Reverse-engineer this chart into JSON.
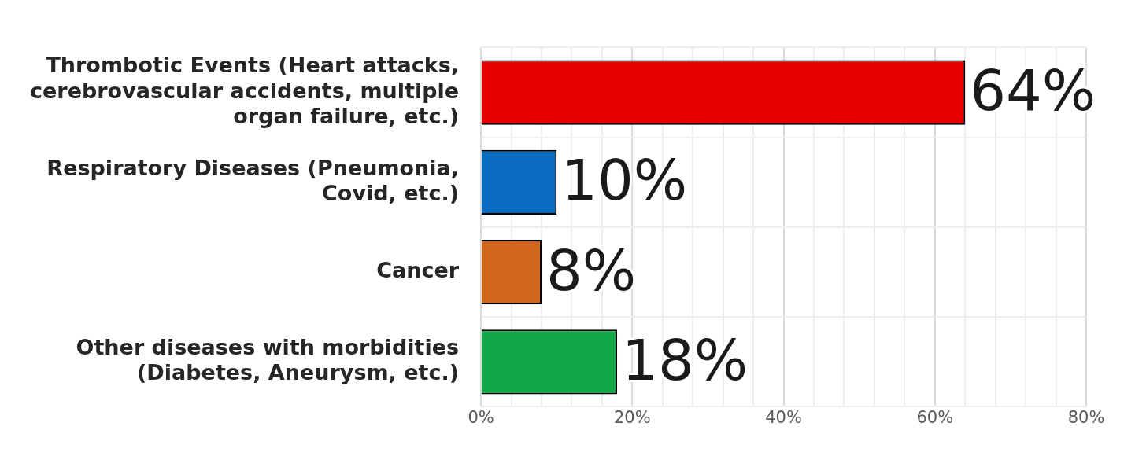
{
  "chart_data": {
    "type": "bar",
    "orientation": "horizontal",
    "categories": [
      "Thrombotic Events (Heart attacks, cerebrovascular accidents, multiple organ failure, etc.)",
      "Respiratory Diseases (Pneumonia, Covid, etc.)",
      "Cancer",
      "Other diseases with morbidities (Diabetes, Aneurysm, etc.)"
    ],
    "values": [
      64,
      10,
      8,
      18
    ],
    "colors": [
      "#e80000",
      "#0a6cc0",
      "#d0661a",
      "#12a848"
    ],
    "value_labels": [
      "64%",
      "10%",
      "8%",
      "18%"
    ],
    "xlim": [
      0,
      80
    ],
    "xticks": [
      {
        "value": 0,
        "label": "0%"
      },
      {
        "value": 4,
        "label": null
      },
      {
        "value": 8,
        "label": null
      },
      {
        "value": 12,
        "label": null
      },
      {
        "value": 16,
        "label": null
      },
      {
        "value": 20,
        "label": "20%"
      },
      {
        "value": 24,
        "label": null
      },
      {
        "value": 28,
        "label": null
      },
      {
        "value": 32,
        "label": null
      },
      {
        "value": 36,
        "label": null
      },
      {
        "value": 40,
        "label": "40%"
      },
      {
        "value": 44,
        "label": null
      },
      {
        "value": 48,
        "label": null
      },
      {
        "value": 52,
        "label": null
      },
      {
        "value": 56,
        "label": null
      },
      {
        "value": 60,
        "label": "60%"
      },
      {
        "value": 64,
        "label": null
      },
      {
        "value": 68,
        "label": null
      },
      {
        "value": 72,
        "label": null
      },
      {
        "value": 76,
        "label": null
      },
      {
        "value": 80,
        "label": "80%"
      }
    ],
    "grid": true
  }
}
